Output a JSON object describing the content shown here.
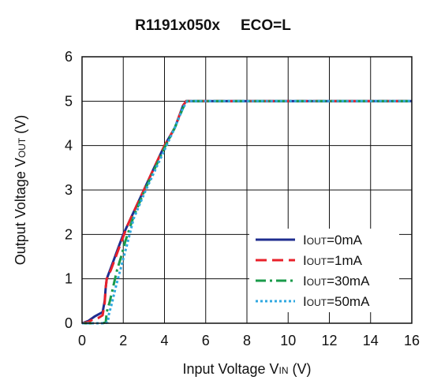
{
  "chart_data": {
    "type": "line",
    "title_main": "R1191x050x",
    "title_eco": "ECO=L",
    "xlabel": {
      "prefix": "Input Voltage V",
      "sub": "IN",
      "suffix": " (V)"
    },
    "ylabel": {
      "prefix": "Output Voltage V",
      "sub": "OUT",
      "suffix": " (V)"
    },
    "xlim": [
      0,
      16
    ],
    "ylim": [
      0,
      6
    ],
    "xticks": [
      0,
      2,
      4,
      6,
      8,
      10,
      12,
      14,
      16
    ],
    "yticks": [
      0,
      1,
      2,
      3,
      4,
      5,
      6
    ],
    "grid": true,
    "legend_position": "bottom-right",
    "series": [
      {
        "legend": {
          "prefix": "I",
          "sub": "OUT",
          "suffix": "=0mA"
        },
        "color": "#1f2d8f",
        "dash": "solid",
        "x": [
          0,
          0.3,
          0.6,
          0.8,
          1.0,
          1.1,
          1.15,
          1.2,
          1.4,
          1.6,
          1.8,
          2.0,
          2.2,
          2.5,
          3.0,
          3.5,
          4.0,
          4.5,
          4.9,
          5.05,
          6,
          8,
          10,
          12,
          14,
          16
        ],
        "y": [
          0,
          0.05,
          0.15,
          0.2,
          0.25,
          0.5,
          0.8,
          1.0,
          1.25,
          1.5,
          1.75,
          2.0,
          2.2,
          2.5,
          3.0,
          3.5,
          4.0,
          4.4,
          4.9,
          5.0,
          5.0,
          5.0,
          5.0,
          5.0,
          5.0,
          5.0
        ]
      },
      {
        "legend": {
          "prefix": "I",
          "sub": "OUT",
          "suffix": "=1mA"
        },
        "color": "#e8202a",
        "dash": "long-dash",
        "x": [
          0,
          0.3,
          0.6,
          0.8,
          1.0,
          1.1,
          1.15,
          1.2,
          1.4,
          1.6,
          1.8,
          2.0,
          2.2,
          2.5,
          3.0,
          3.5,
          4.0,
          4.5,
          4.9,
          5.05,
          6,
          8,
          10,
          12,
          14,
          16
        ],
        "y": [
          0,
          0.03,
          0.1,
          0.12,
          0.18,
          0.45,
          0.8,
          1.0,
          1.2,
          1.45,
          1.7,
          1.95,
          2.2,
          2.5,
          3.0,
          3.5,
          4.0,
          4.4,
          4.9,
          5.0,
          5.0,
          5.0,
          5.0,
          5.0,
          5.0,
          5.0
        ]
      },
      {
        "legend": {
          "prefix": "I",
          "sub": "OUT",
          "suffix": "=30mA"
        },
        "color": "#1a9a4a",
        "dash": "dash-dot",
        "x": [
          0,
          1.0,
          1.15,
          1.2,
          1.35,
          1.5,
          1.7,
          1.9,
          2.1,
          2.5,
          3.0,
          3.5,
          4.0,
          4.5,
          4.9,
          5.1,
          6,
          8,
          10,
          12,
          14,
          16
        ],
        "y": [
          0,
          0,
          0.02,
          0.25,
          0.5,
          0.8,
          1.2,
          1.5,
          1.85,
          2.4,
          2.95,
          3.45,
          3.95,
          4.4,
          4.85,
          5.0,
          5.0,
          5.0,
          5.0,
          5.0,
          5.0,
          5.0
        ]
      },
      {
        "legend": {
          "prefix": "I",
          "sub": "OUT",
          "suffix": "=50mA"
        },
        "color": "#2fa8e0",
        "dash": "dotted",
        "x": [
          0,
          1.1,
          1.25,
          1.3,
          1.45,
          1.6,
          1.8,
          2.0,
          2.2,
          2.5,
          3.0,
          3.5,
          4.0,
          4.5,
          4.9,
          5.1,
          6,
          8,
          10,
          12,
          14,
          16
        ],
        "y": [
          0,
          0,
          0.02,
          0.2,
          0.45,
          0.75,
          1.1,
          1.45,
          1.8,
          2.35,
          2.9,
          3.4,
          3.9,
          4.4,
          4.85,
          5.0,
          5.0,
          5.0,
          5.0,
          5.0,
          5.0,
          5.0
        ]
      }
    ]
  }
}
